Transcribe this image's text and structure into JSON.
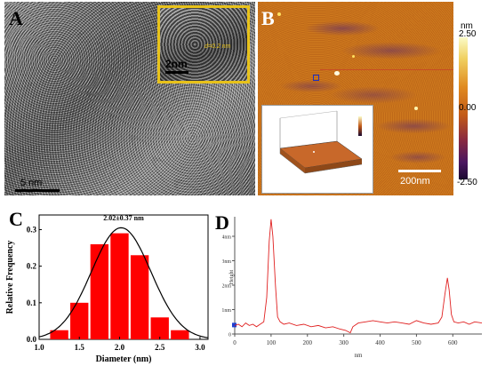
{
  "panels": {
    "a": {
      "letter": "A",
      "scale_label": "5 nm",
      "inset_scale_label": "2nm",
      "inset_measure": "d=0.2 nm"
    },
    "b": {
      "letter": "B",
      "scale_label": "200nm",
      "colorbar": {
        "unit": "nm",
        "max": "2.50",
        "mid": "0.00",
        "min": "-2.50"
      }
    },
    "c": {
      "letter": "C"
    },
    "d": {
      "letter": "D"
    }
  },
  "chart_data": [
    {
      "type": "bar",
      "panel": "C",
      "annotation": "2.02±0.37 nm",
      "xlabel": "Diameter (nm)",
      "ylabel": "Relative Frequency",
      "categories": [
        1.25,
        1.5,
        1.75,
        2.0,
        2.25,
        2.5,
        2.75,
        3.0
      ],
      "values": [
        0.025,
        0.1,
        0.26,
        0.29,
        0.23,
        0.06,
        0.025,
        0
      ],
      "bars": [
        [
          1.25,
          0.025
        ],
        [
          1.5,
          0.1
        ],
        [
          1.75,
          0.26
        ],
        [
          2.0,
          0.29
        ],
        [
          2.25,
          0.23
        ],
        [
          2.5,
          0.06
        ],
        [
          2.75,
          0.025
        ]
      ],
      "fit_curve": {
        "mean": 2.02,
        "sigma": 0.37,
        "peak": 0.305
      },
      "xlim": [
        1.0,
        3.1
      ],
      "ylim": [
        0,
        0.34
      ],
      "xticks": [
        "1.0",
        "1.5",
        "2.0",
        "2.5",
        "3.0"
      ],
      "yticks": [
        "0.0",
        "0.1",
        "0.2",
        "0.3"
      ],
      "bar_color": "#ff0000"
    },
    {
      "type": "line",
      "panel": "D",
      "xlabel": "nm",
      "ylabel": "Height",
      "xlim": [
        0,
        680
      ],
      "ylim": [
        0,
        4.8
      ],
      "xticks": [
        "0",
        "100",
        "200",
        "300",
        "400",
        "500",
        "600"
      ],
      "yticks": [
        "0",
        "1nm",
        "2nm",
        "3nm",
        "4nm"
      ],
      "line_color": "#e02020",
      "series": [
        {
          "values_xy": [
            [
              0,
              0.35
            ],
            [
              10,
              0.4
            ],
            [
              20,
              0.3
            ],
            [
              30,
              0.45
            ],
            [
              40,
              0.35
            ],
            [
              50,
              0.4
            ],
            [
              60,
              0.3
            ],
            [
              70,
              0.4
            ],
            [
              80,
              0.5
            ],
            [
              88,
              1.5
            ],
            [
              95,
              3.8
            ],
            [
              100,
              4.7
            ],
            [
              105,
              4.0
            ],
            [
              112,
              2.0
            ],
            [
              118,
              0.7
            ],
            [
              125,
              0.5
            ],
            [
              135,
              0.4
            ],
            [
              150,
              0.45
            ],
            [
              170,
              0.35
            ],
            [
              190,
              0.4
            ],
            [
              210,
              0.3
            ],
            [
              230,
              0.35
            ],
            [
              250,
              0.25
            ],
            [
              270,
              0.3
            ],
            [
              290,
              0.2
            ],
            [
              305,
              0.15
            ],
            [
              318,
              0.05
            ],
            [
              325,
              0.3
            ],
            [
              340,
              0.45
            ],
            [
              360,
              0.5
            ],
            [
              380,
              0.55
            ],
            [
              400,
              0.5
            ],
            [
              420,
              0.45
            ],
            [
              440,
              0.5
            ],
            [
              460,
              0.45
            ],
            [
              480,
              0.4
            ],
            [
              500,
              0.55
            ],
            [
              520,
              0.45
            ],
            [
              540,
              0.4
            ],
            [
              560,
              0.45
            ],
            [
              570,
              0.7
            ],
            [
              578,
              1.6
            ],
            [
              585,
              2.3
            ],
            [
              590,
              1.8
            ],
            [
              596,
              0.8
            ],
            [
              603,
              0.5
            ],
            [
              615,
              0.45
            ],
            [
              630,
              0.5
            ],
            [
              645,
              0.4
            ],
            [
              660,
              0.5
            ],
            [
              680,
              0.45
            ]
          ]
        }
      ]
    }
  ]
}
